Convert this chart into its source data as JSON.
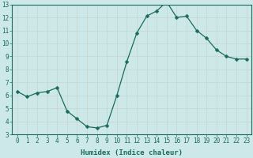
{
  "x": [
    0,
    1,
    2,
    3,
    4,
    5,
    6,
    7,
    8,
    9,
    10,
    11,
    12,
    13,
    14,
    15,
    16,
    17,
    18,
    19,
    20,
    21,
    22,
    23
  ],
  "y": [
    6.3,
    5.9,
    6.2,
    6.3,
    6.6,
    4.8,
    4.2,
    3.6,
    3.5,
    3.7,
    6.0,
    8.6,
    10.8,
    12.1,
    12.5,
    13.2,
    12.0,
    12.1,
    11.0,
    10.4,
    9.5,
    9.0,
    8.8,
    8.8
  ],
  "xlabel": "Humidex (Indice chaleur)",
  "ylim": [
    3,
    13
  ],
  "xlim_min": -0.5,
  "xlim_max": 23.5,
  "yticks": [
    3,
    4,
    5,
    6,
    7,
    8,
    9,
    10,
    11,
    12,
    13
  ],
  "xticks": [
    0,
    1,
    2,
    3,
    4,
    5,
    6,
    7,
    8,
    9,
    10,
    11,
    12,
    13,
    14,
    15,
    16,
    17,
    18,
    19,
    20,
    21,
    22,
    23
  ],
  "line_color": "#1a6b5a",
  "marker_size": 2.5,
  "bg_color": "#cce8e8",
  "grid_color": "#b8d8d8",
  "label_fontsize": 6.5,
  "tick_fontsize": 5.5
}
